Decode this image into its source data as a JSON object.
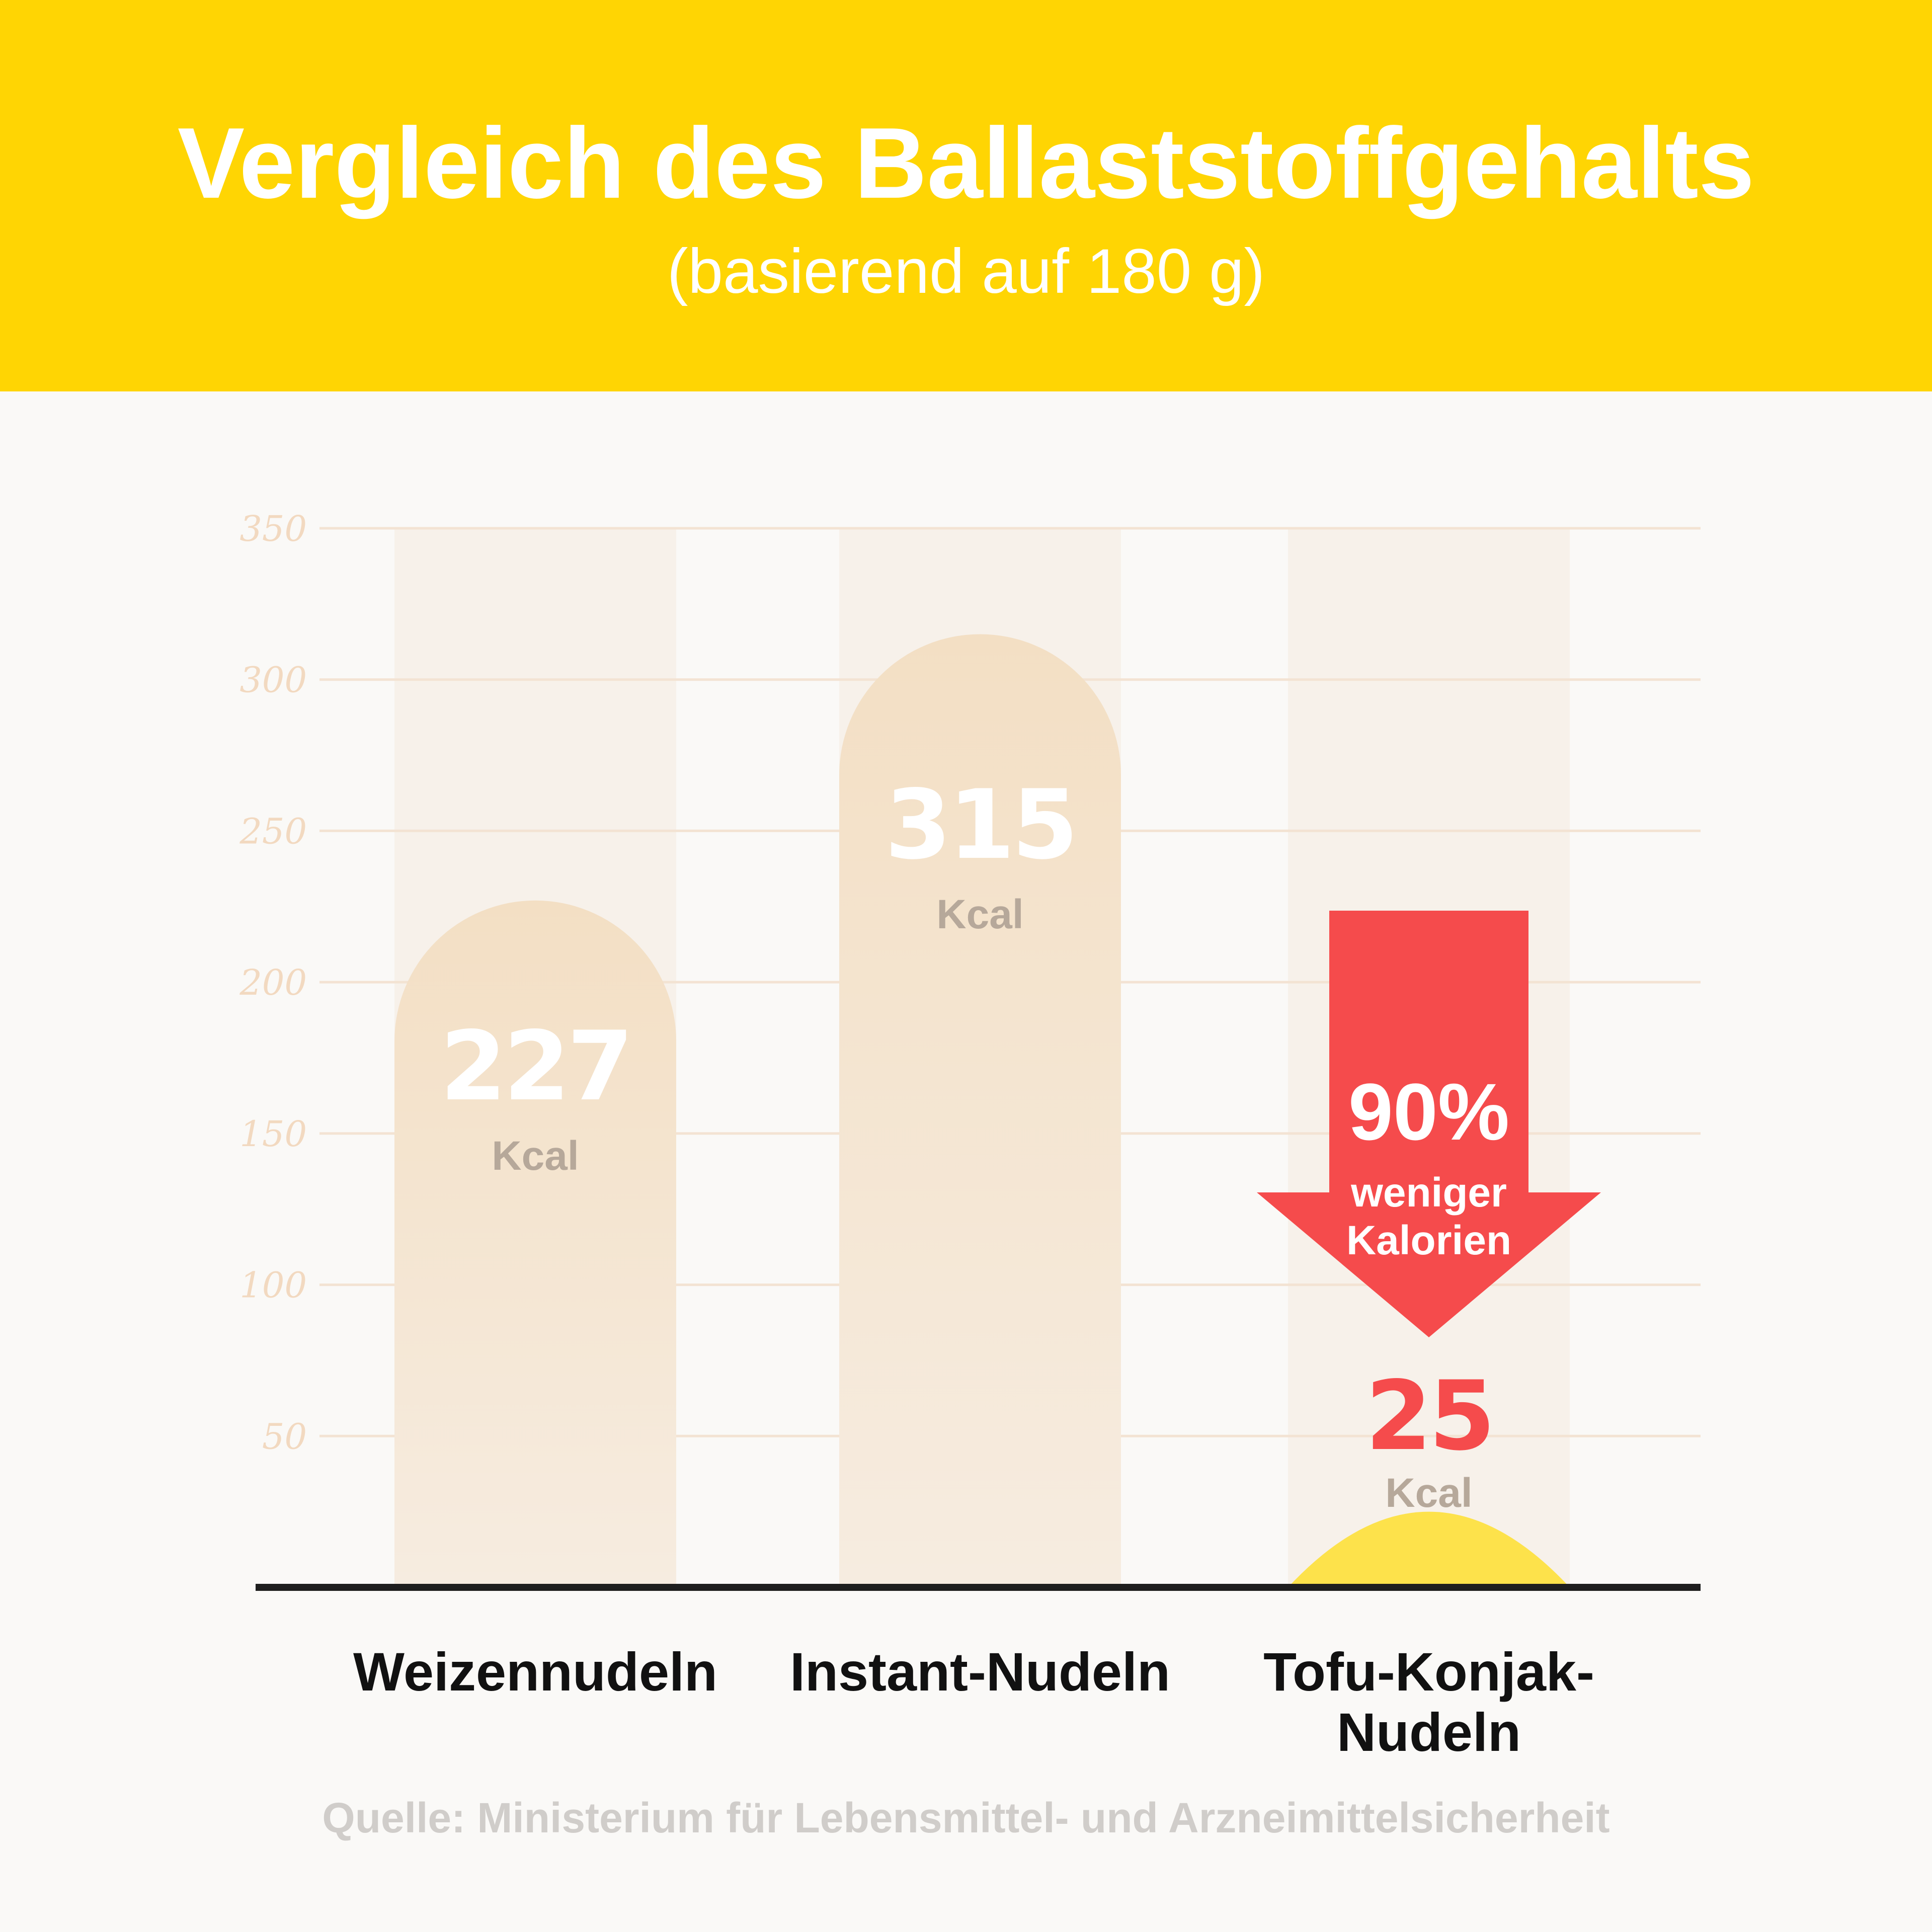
{
  "header": {
    "title": "Vergleich des Ballaststoffgehalts",
    "subtitle": "(basierend auf 180 g)"
  },
  "chart_data": {
    "type": "bar",
    "title": "Vergleich des Ballaststoffgehalts",
    "subtitle": "(basierend auf 180 g)",
    "categories": [
      "Weizennudeln",
      "Instant-Nudeln",
      "Tofu-Konjak-Nudeln"
    ],
    "category_lines": [
      [
        "Weizennudeln"
      ],
      [
        "Instant-Nudeln"
      ],
      [
        "Tofu-Konjak-",
        "Nudeln"
      ]
    ],
    "values": [
      227,
      315,
      25
    ],
    "value_labels": [
      "227",
      "315",
      "25"
    ],
    "unit": "Kcal",
    "yticks": [
      50,
      100,
      150,
      200,
      250,
      300,
      350
    ],
    "ylim": [
      0,
      350
    ],
    "xlabel": "",
    "ylabel": "",
    "grid": true,
    "annotation": {
      "percent": "90%",
      "line1": "weniger",
      "line2": "Kalorien",
      "color": "#f54b4c"
    },
    "colors": {
      "bar": "#f3dfc4",
      "highlight_bar": "#fde24b",
      "highlight_value": "#f54b4c"
    }
  },
  "source": "Quelle: Ministerium für Lebensmittel- und Arzneimittelsicherheit"
}
